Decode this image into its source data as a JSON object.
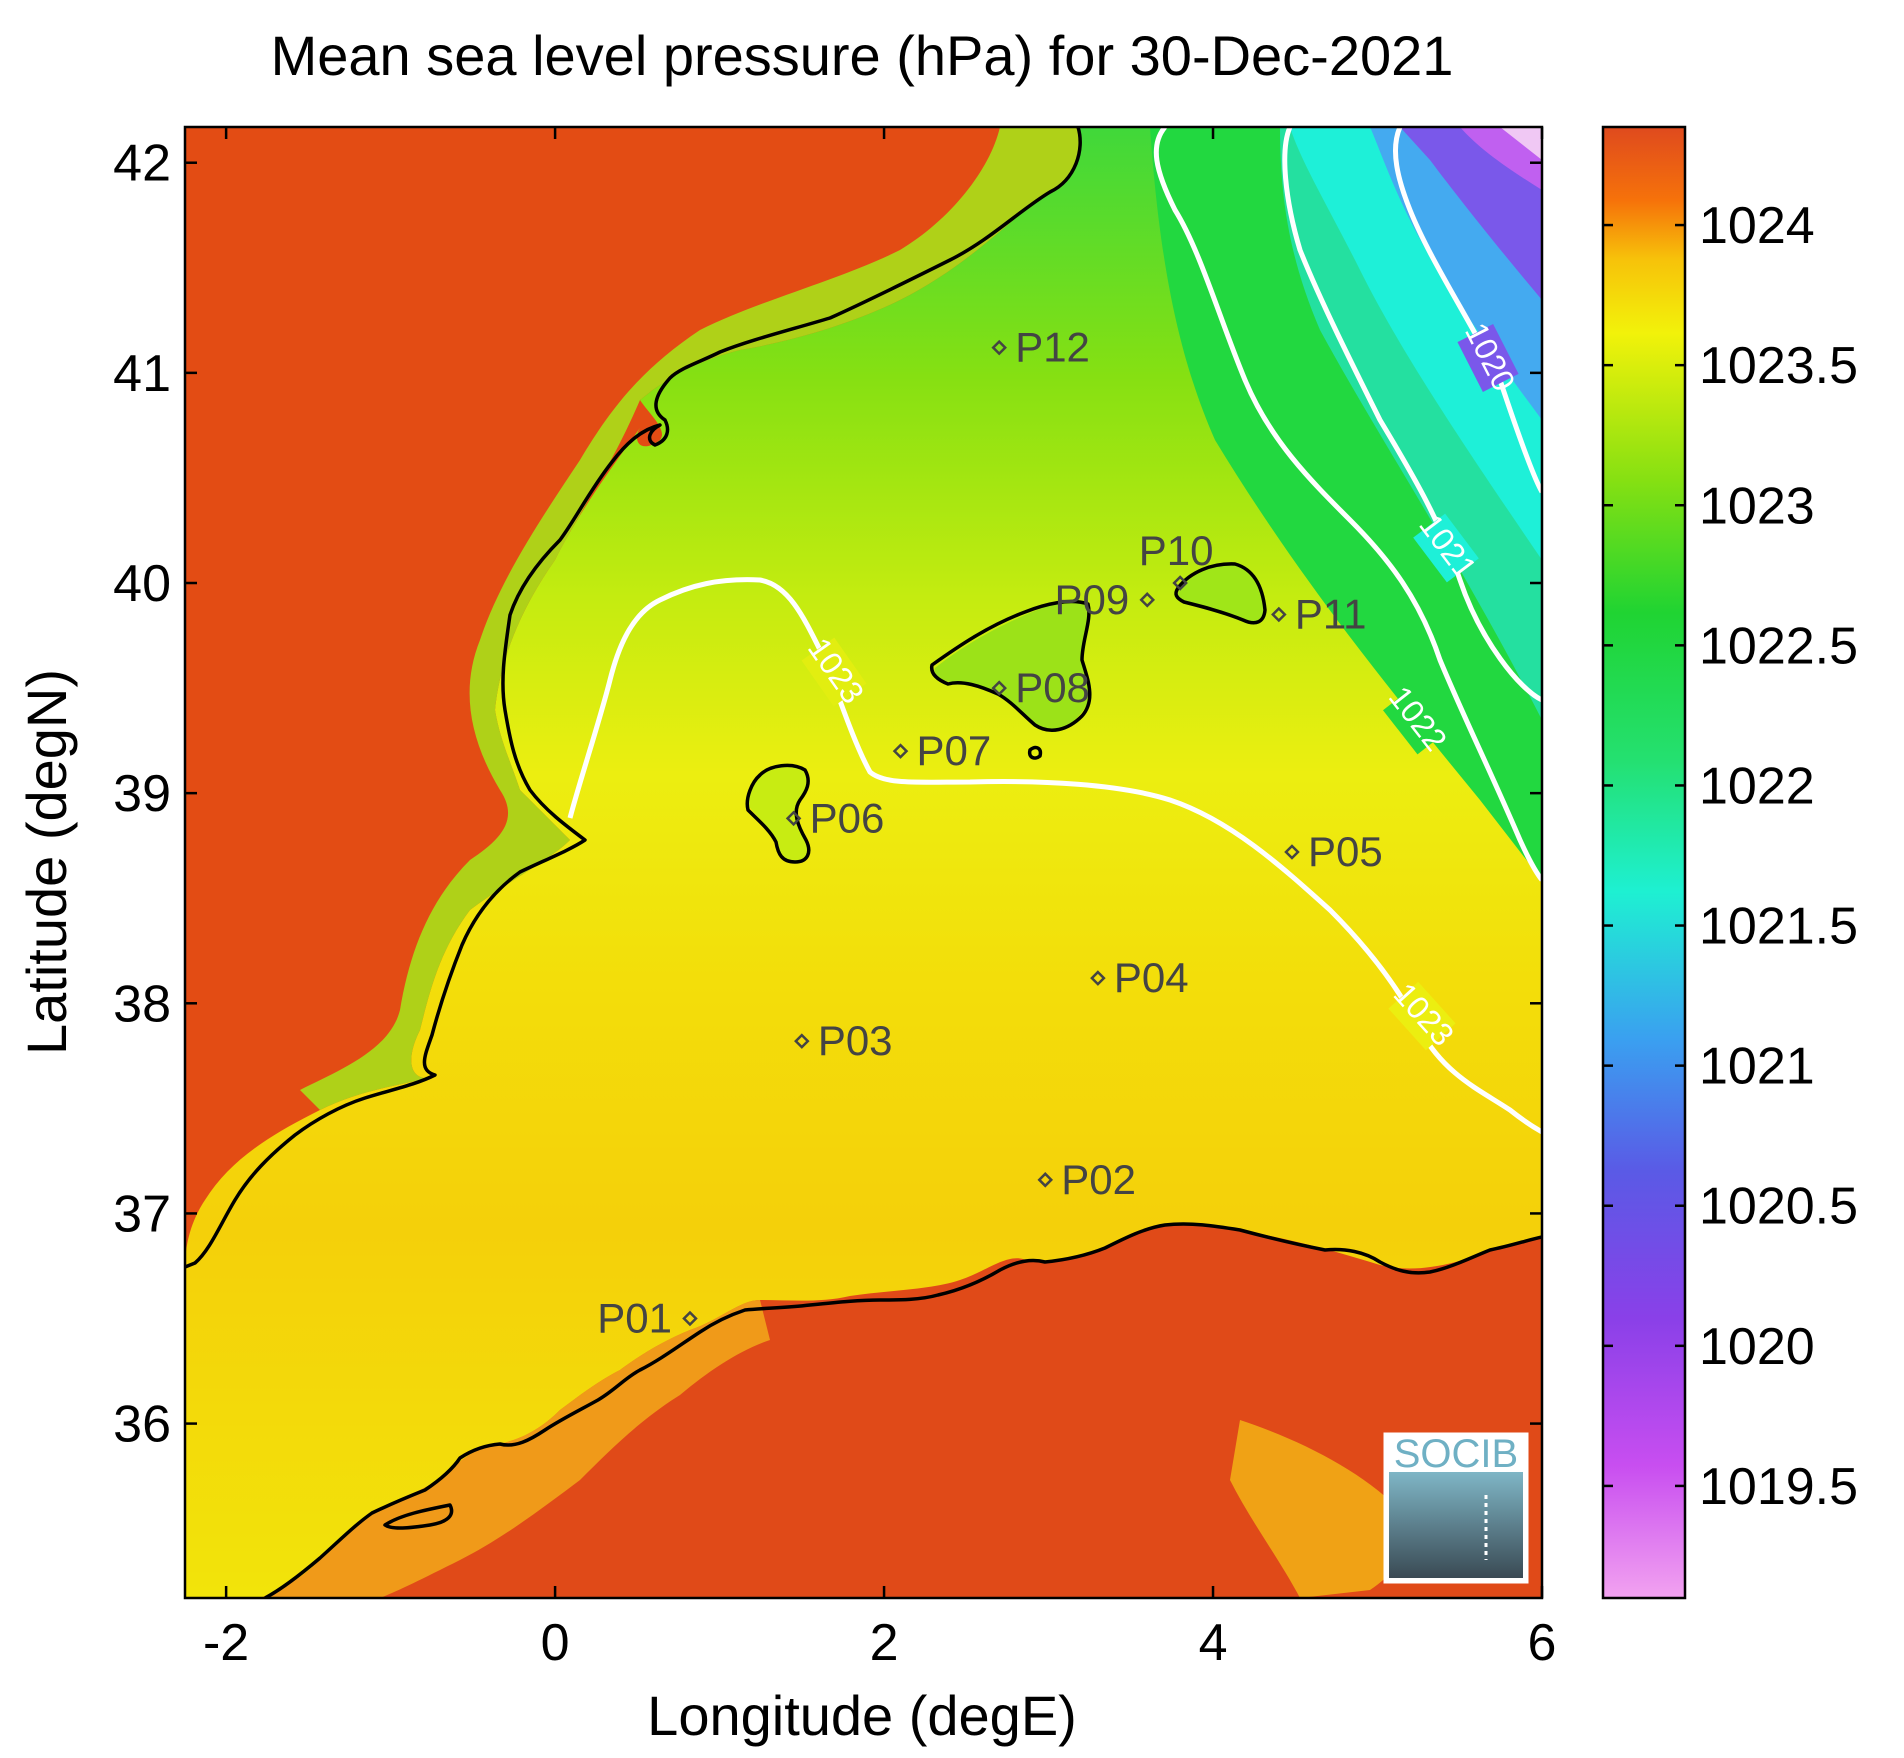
{
  "title": "Mean sea level pressure (hPa) for 30-Dec-2021",
  "axes": {
    "xlabel": "Longitude (degE)",
    "ylabel": "Latitude (degN)",
    "xlim": [
      -2.25,
      6.0
    ],
    "ylim": [
      35.17,
      42.17
    ],
    "xticks": [
      {
        "value": -2,
        "label": "-2"
      },
      {
        "value": 0,
        "label": "0"
      },
      {
        "value": 2,
        "label": "2"
      },
      {
        "value": 4,
        "label": "4"
      },
      {
        "value": 6,
        "label": "6"
      }
    ],
    "yticks": [
      {
        "value": 36,
        "label": "36"
      },
      {
        "value": 37,
        "label": "37"
      },
      {
        "value": 38,
        "label": "38"
      },
      {
        "value": 39,
        "label": "39"
      },
      {
        "value": 40,
        "label": "40"
      },
      {
        "value": 41,
        "label": "41"
      },
      {
        "value": 42,
        "label": "42"
      }
    ]
  },
  "colorbar": {
    "range": [
      1019.1,
      1024.35
    ],
    "ticks": [
      {
        "value": 1024,
        "label": "1024"
      },
      {
        "value": 1023.5,
        "label": "1023.5"
      },
      {
        "value": 1023,
        "label": "1023"
      },
      {
        "value": 1022.5,
        "label": "1022.5"
      },
      {
        "value": 1022,
        "label": "1022"
      },
      {
        "value": 1021.5,
        "label": "1021.5"
      },
      {
        "value": 1021,
        "label": "1021"
      },
      {
        "value": 1020.5,
        "label": "1020.5"
      },
      {
        "value": 1020,
        "label": "1020"
      },
      {
        "value": 1019.5,
        "label": "1019.5"
      }
    ],
    "colors": [
      "#f2a2f0",
      "#c84ef0",
      "#8a40e8",
      "#5a5ae6",
      "#3aa0f0",
      "#1ef0d2",
      "#24e070",
      "#20d432",
      "#86e012",
      "#f2f20a",
      "#f7c20a",
      "#f6720a",
      "#df4a1e"
    ]
  },
  "chart_data": {
    "type": "heatmap",
    "variable": "Mean sea level pressure",
    "units": "hPa",
    "date": "30-Dec-2021",
    "contours": [
      {
        "label": "1020",
        "level": 1020
      },
      {
        "label": "1021",
        "level": 1021
      },
      {
        "label": "1022",
        "level": 1022
      },
      {
        "label": "1023",
        "level": 1023
      }
    ],
    "stations": [
      {
        "label": "P01",
        "lon": 0.82,
        "lat": 36.5
      },
      {
        "label": "P02",
        "lon": 2.98,
        "lat": 37.16
      },
      {
        "label": "P03",
        "lon": 1.5,
        "lat": 37.82
      },
      {
        "label": "P04",
        "lon": 3.3,
        "lat": 38.12
      },
      {
        "label": "P05",
        "lon": 4.48,
        "lat": 38.72
      },
      {
        "label": "P06",
        "lon": 1.45,
        "lat": 38.88
      },
      {
        "label": "P07",
        "lon": 2.1,
        "lat": 39.2
      },
      {
        "label": "P08",
        "lon": 2.7,
        "lat": 39.5
      },
      {
        "label": "P09",
        "lon": 3.6,
        "lat": 39.92
      },
      {
        "label": "P10",
        "lon": 3.8,
        "lat": 40.0
      },
      {
        "label": "P11",
        "lon": 4.4,
        "lat": 39.85
      },
      {
        "label": "P12",
        "lon": 2.7,
        "lat": 41.12
      }
    ]
  },
  "logo": {
    "text": "SOCIB"
  }
}
